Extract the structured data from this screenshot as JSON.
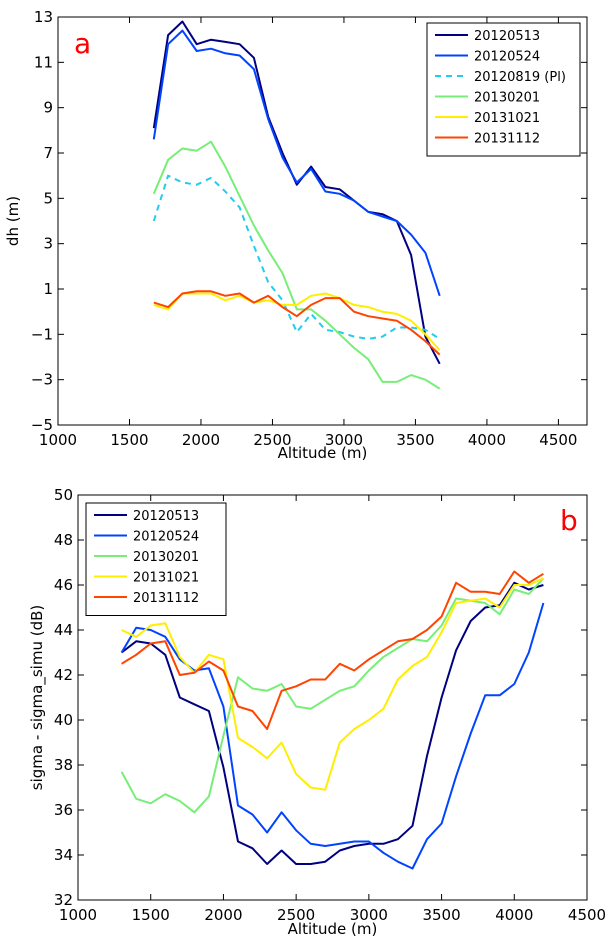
{
  "charts": [
    {
      "type": "line",
      "panel_label": "a",
      "title": "",
      "xlabel": "Altitude (m)",
      "ylabel": "dh (m)",
      "xlim": [
        1000,
        4700
      ],
      "ylim": [
        -5,
        13
      ],
      "xticks": [
        1000,
        1500,
        2000,
        2500,
        3000,
        3500,
        4000,
        4500
      ],
      "yticks": [
        -5,
        -3,
        -1,
        1,
        3,
        5,
        7,
        9,
        11,
        13
      ],
      "grid": false,
      "legend": "top-right",
      "colors": {
        "panel_label": "#ff0000"
      },
      "series": [
        {
          "name": "20120513",
          "color": "#000080",
          "dashed": false,
          "x": [
            1670,
            1770,
            1870,
            1970,
            2070,
            2170,
            2270,
            2370,
            2470,
            2570,
            2670,
            2770,
            2870,
            2970,
            3070,
            3170,
            3270,
            3370,
            3470,
            3570,
            3670
          ],
          "y": [
            8.1,
            12.2,
            12.8,
            11.8,
            12.0,
            11.9,
            11.8,
            11.2,
            8.6,
            7.0,
            5.6,
            6.4,
            5.5,
            5.4,
            4.9,
            4.4,
            4.3,
            4.0,
            2.5,
            -1.1,
            -2.3
          ]
        },
        {
          "name": "20120524",
          "color": "#0044ff",
          "dashed": false,
          "x": [
            1670,
            1770,
            1870,
            1970,
            2070,
            2170,
            2270,
            2370,
            2470,
            2570,
            2670,
            2770,
            2870,
            2970,
            3070,
            3170,
            3270,
            3370,
            3470,
            3570,
            3670
          ],
          "y": [
            7.6,
            11.8,
            12.4,
            11.5,
            11.6,
            11.4,
            11.3,
            10.7,
            8.5,
            6.8,
            5.7,
            6.3,
            5.3,
            5.2,
            4.9,
            4.4,
            4.2,
            4.0,
            3.4,
            2.6,
            0.7
          ]
        },
        {
          "name": "20120819 (Pl)",
          "color": "#22ccee",
          "dashed": true,
          "x": [
            1670,
            1770,
            1870,
            1970,
            2070,
            2170,
            2270,
            2370,
            2470,
            2570,
            2670,
            2770,
            2870,
            2970,
            3070,
            3170,
            3270,
            3370,
            3470,
            3570,
            3670
          ],
          "y": [
            4.0,
            6.0,
            5.7,
            5.6,
            5.9,
            5.3,
            4.6,
            2.9,
            1.3,
            0.5,
            -0.9,
            -0.1,
            -0.8,
            -0.9,
            -1.1,
            -1.2,
            -1.1,
            -0.7,
            -0.7,
            -0.8,
            -1.2
          ]
        },
        {
          "name": "20130201",
          "color": "#77ee77",
          "dashed": false,
          "x": [
            1670,
            1770,
            1870,
            1970,
            2070,
            2170,
            2270,
            2370,
            2470,
            2570,
            2670,
            2770,
            2870,
            2970,
            3070,
            3170,
            3270,
            3370,
            3470,
            3570,
            3670
          ],
          "y": [
            5.2,
            6.7,
            7.2,
            7.1,
            7.5,
            6.4,
            5.1,
            3.8,
            2.7,
            1.7,
            0.1,
            0.1,
            -0.4,
            -1.0,
            -1.6,
            -2.1,
            -3.1,
            -3.1,
            -2.8,
            -3.0,
            -3.4
          ]
        },
        {
          "name": "20131021",
          "color": "#ffee00",
          "dashed": false,
          "x": [
            1670,
            1770,
            1870,
            1970,
            2070,
            2170,
            2270,
            2370,
            2470,
            2570,
            2670,
            2770,
            2870,
            2970,
            3070,
            3170,
            3270,
            3370,
            3470,
            3570,
            3670
          ],
          "y": [
            0.3,
            0.1,
            0.8,
            0.8,
            0.8,
            0.5,
            0.7,
            0.4,
            0.5,
            0.3,
            0.3,
            0.7,
            0.8,
            0.6,
            0.3,
            0.2,
            0.0,
            -0.1,
            -0.4,
            -1.0,
            -1.7
          ]
        },
        {
          "name": "20131112",
          "color": "#ff4400",
          "dashed": false,
          "x": [
            1670,
            1770,
            1870,
            1970,
            2070,
            2170,
            2270,
            2370,
            2470,
            2570,
            2670,
            2770,
            2870,
            2970,
            3070,
            3170,
            3270,
            3370,
            3470,
            3570,
            3670
          ],
          "y": [
            0.4,
            0.2,
            0.8,
            0.9,
            0.9,
            0.7,
            0.8,
            0.4,
            0.7,
            0.2,
            -0.2,
            0.3,
            0.6,
            0.6,
            0.0,
            -0.2,
            -0.3,
            -0.4,
            -0.8,
            -1.3,
            -1.9
          ]
        }
      ]
    },
    {
      "type": "line",
      "panel_label": "b",
      "title": "",
      "xlabel": "Altitude (m)",
      "ylabel": "sigma - sigma_simu (dB)",
      "xlim": [
        1000,
        4500
      ],
      "ylim": [
        32,
        50
      ],
      "xticks": [
        1000,
        1500,
        2000,
        2500,
        3000,
        3500,
        4000,
        4500
      ],
      "yticks": [
        32,
        34,
        36,
        38,
        40,
        42,
        44,
        46,
        48,
        50
      ],
      "grid": false,
      "legend": "top-left",
      "colors": {
        "panel_label": "#ff0000"
      },
      "series": [
        {
          "name": "20120513",
          "color": "#000080",
          "x": [
            1300,
            1400,
            1500,
            1600,
            1700,
            1800,
            1900,
            2000,
            2100,
            2200,
            2300,
            2400,
            2500,
            2600,
            2700,
            2800,
            2900,
            3000,
            3100,
            3200,
            3300,
            3400,
            3500,
            3600,
            3700,
            3800,
            3900,
            4000,
            4100,
            4200
          ],
          "y": [
            43.0,
            43.5,
            43.4,
            42.9,
            41.0,
            40.7,
            40.4,
            37.9,
            34.6,
            34.3,
            33.6,
            34.2,
            33.6,
            33.6,
            33.7,
            34.2,
            34.4,
            34.5,
            34.5,
            34.7,
            35.3,
            38.4,
            41.0,
            43.1,
            44.4,
            45.0,
            45.1,
            46.1,
            45.8,
            46.0
          ]
        },
        {
          "name": "20120524",
          "color": "#0044ff",
          "x": [
            1300,
            1400,
            1500,
            1600,
            1700,
            1800,
            1900,
            2000,
            2100,
            2200,
            2300,
            2400,
            2500,
            2600,
            2700,
            2800,
            2900,
            3000,
            3100,
            3200,
            3300,
            3400,
            3500,
            3600,
            3700,
            3800,
            3900,
            4000,
            4100,
            4200
          ],
          "y": [
            43.0,
            44.1,
            44.0,
            43.7,
            42.7,
            42.2,
            42.3,
            40.6,
            36.2,
            35.8,
            35.0,
            35.9,
            35.1,
            34.5,
            34.4,
            34.5,
            34.6,
            34.6,
            34.1,
            33.7,
            33.4,
            34.7,
            35.4,
            37.5,
            39.4,
            41.1,
            41.1,
            41.6,
            43.0,
            45.2
          ]
        },
        {
          "name": "20130201",
          "color": "#77ee77",
          "x": [
            1300,
            1400,
            1500,
            1600,
            1700,
            1800,
            1900,
            2000,
            2100,
            2200,
            2300,
            2400,
            2500,
            2600,
            2700,
            2800,
            2900,
            3000,
            3100,
            3200,
            3300,
            3400,
            3500,
            3600,
            3700,
            3800,
            3900,
            4000,
            4100,
            4200
          ],
          "y": [
            37.7,
            36.5,
            36.3,
            36.7,
            36.4,
            35.9,
            36.6,
            39.3,
            41.9,
            41.4,
            41.3,
            41.6,
            40.6,
            40.5,
            40.9,
            41.3,
            41.5,
            42.2,
            42.8,
            43.2,
            43.6,
            43.5,
            44.2,
            45.4,
            45.3,
            45.2,
            44.7,
            45.8,
            45.6,
            46.3
          ]
        },
        {
          "name": "20131021",
          "color": "#ffee00",
          "x": [
            1300,
            1400,
            1500,
            1600,
            1700,
            1800,
            1900,
            2000,
            2100,
            2200,
            2300,
            2400,
            2500,
            2600,
            2700,
            2800,
            2900,
            3000,
            3100,
            3200,
            3300,
            3400,
            3500,
            3600,
            3700,
            3800,
            3900,
            4000,
            4100,
            4200
          ],
          "y": [
            44.0,
            43.7,
            44.2,
            44.3,
            42.8,
            42.1,
            42.9,
            42.7,
            39.2,
            38.8,
            38.3,
            39.0,
            37.6,
            37.0,
            36.9,
            39.0,
            39.6,
            40.0,
            40.5,
            41.8,
            42.4,
            42.8,
            43.9,
            45.2,
            45.3,
            45.4,
            45.0,
            46.0,
            46.0,
            46.3
          ]
        },
        {
          "name": "20131112",
          "color": "#ff4400",
          "x": [
            1300,
            1400,
            1500,
            1600,
            1700,
            1800,
            1900,
            2000,
            2100,
            2200,
            2300,
            2400,
            2500,
            2600,
            2700,
            2800,
            2900,
            3000,
            3100,
            3200,
            3300,
            3400,
            3500,
            3600,
            3700,
            3800,
            3900,
            4000,
            4100,
            4200
          ],
          "y": [
            42.5,
            42.9,
            43.4,
            43.5,
            42.0,
            42.1,
            42.6,
            42.2,
            40.6,
            40.4,
            39.6,
            41.3,
            41.5,
            41.8,
            41.8,
            42.5,
            42.2,
            42.7,
            43.1,
            43.5,
            43.6,
            44.0,
            44.6,
            46.1,
            45.7,
            45.7,
            45.6,
            46.6,
            46.1,
            46.5
          ]
        }
      ]
    }
  ]
}
